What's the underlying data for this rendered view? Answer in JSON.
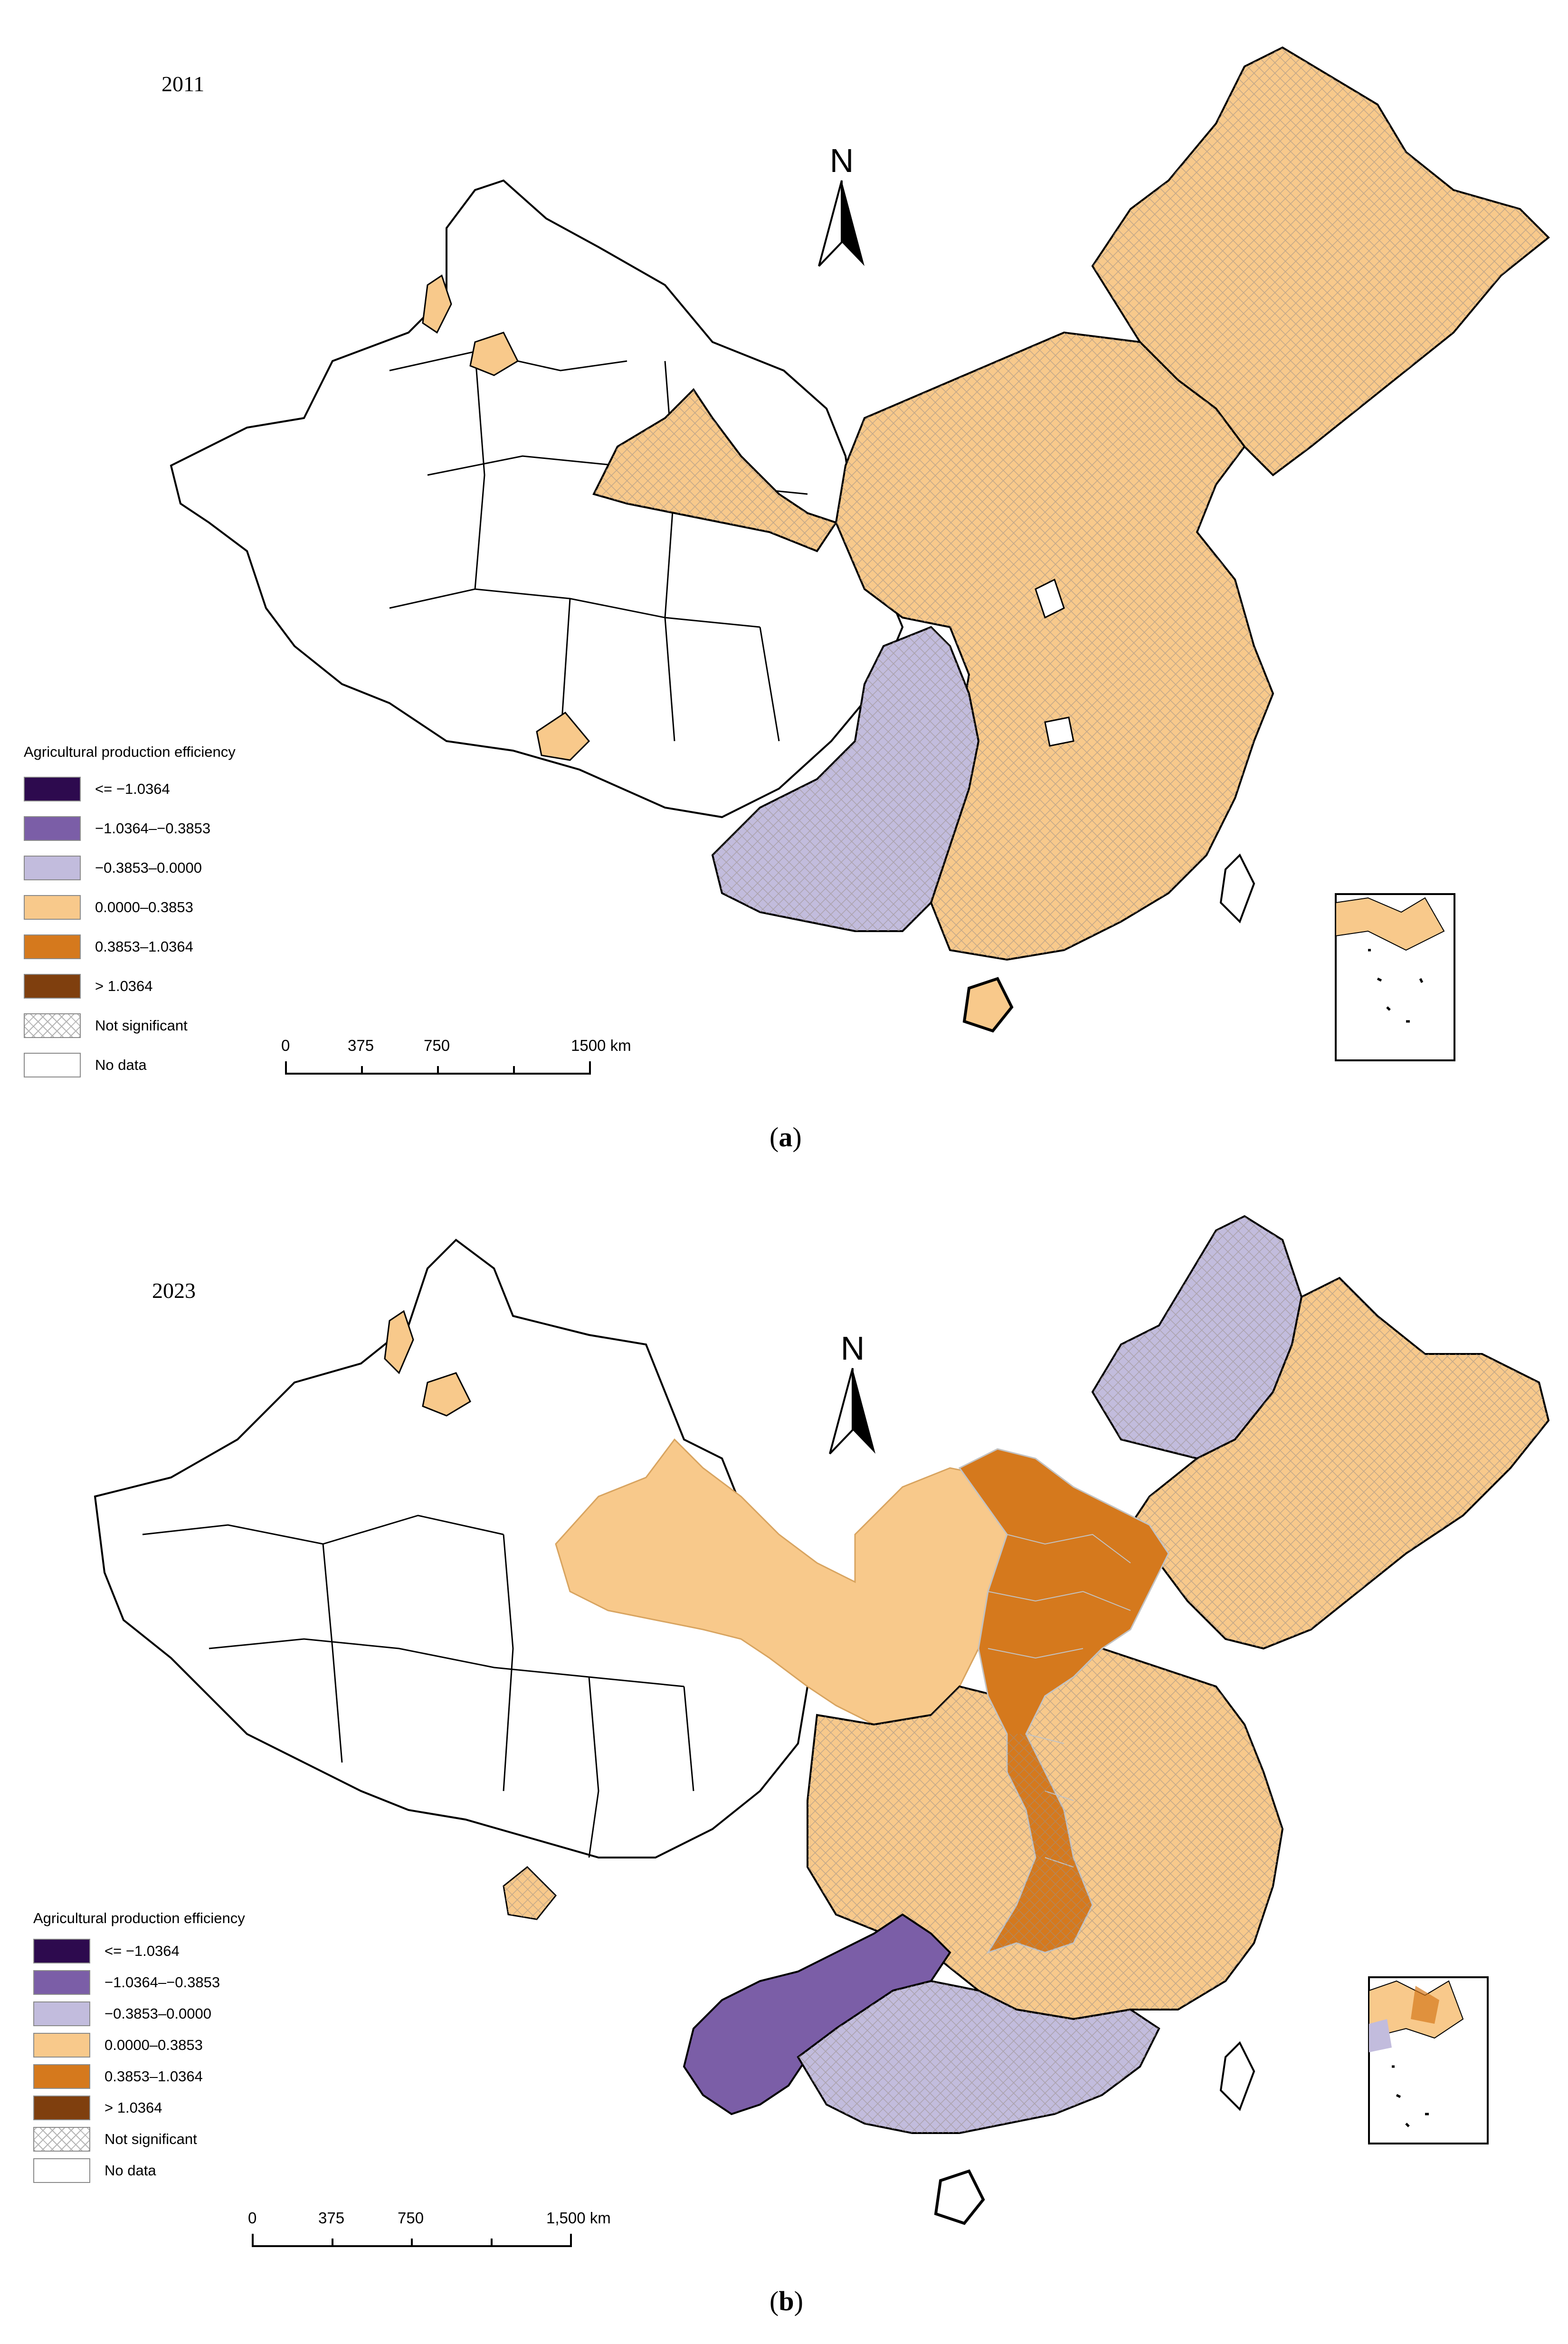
{
  "legend": {
    "title": "Agricultural production efficiency",
    "items": [
      {
        "label": "<= −1.0364",
        "color": "#2d0a4e"
      },
      {
        "label": "−1.0364–−0.3853",
        "color": "#7b5ea7"
      },
      {
        "label": "−0.3853–0.0000",
        "color": "#c2bcdd"
      },
      {
        "label": "0.0000–0.3853",
        "color": "#f8c98b"
      },
      {
        "label": "0.3853–1.0364",
        "color": "#d5791d"
      },
      {
        "label": "> 1.0364",
        "color": "#7f3f0e"
      },
      {
        "label": "Not significant",
        "pattern": "crosshatch"
      },
      {
        "label": "No data",
        "color": "#ffffff"
      }
    ]
  },
  "panels": [
    {
      "year": "2011",
      "caption_letter": "a",
      "north_label": "N",
      "scale_labels": [
        "0",
        "375",
        "750",
        "1500 km"
      ],
      "regions": {
        "northeast": {
          "fill": "#f8c98b",
          "hatched": true
        },
        "north_central_east": {
          "fill": "#f8c98b",
          "hatched": true
        },
        "inner_mongolia_west": {
          "fill": "#f8c98b",
          "hatched": true
        },
        "southwest_cluster": {
          "fill": "#c2bcdd",
          "hatched": true
        },
        "south_coast": {
          "fill": "#f8c98b",
          "hatched": true
        }
      }
    },
    {
      "year": "2023",
      "caption_letter": "b",
      "north_label": "N",
      "scale_labels": [
        "0",
        "375",
        "750",
        "1,500 km"
      ],
      "regions": {
        "northeast_west": {
          "fill": "#c2bcdd",
          "hatched": true
        },
        "northeast": {
          "fill": "#f8c98b",
          "hatched": true
        },
        "northwest_light": {
          "fill": "#f8c98b",
          "hatched": false
        },
        "north_china_core": {
          "fill": "#d5791d",
          "hatched": false
        },
        "central_east": {
          "fill": "#f8c98b",
          "hatched": true
        },
        "southwest_cluster": {
          "fill": "#7b5ea7",
          "hatched": false
        },
        "south_coast": {
          "fill": "#c2bcdd",
          "hatched": true
        }
      }
    }
  ]
}
